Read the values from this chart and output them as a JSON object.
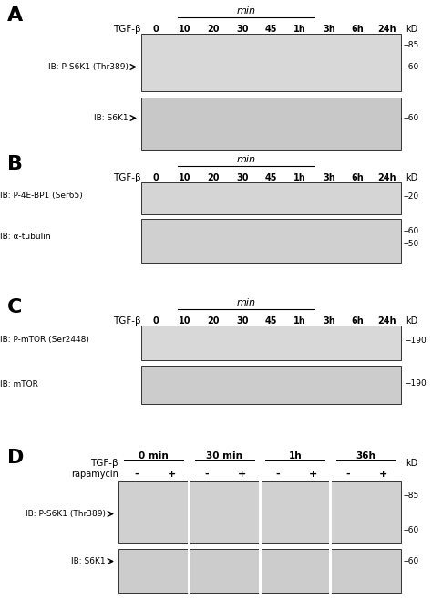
{
  "panel_A": {
    "label": "A",
    "time_labels": [
      "0",
      "10",
      "20",
      "30",
      "45",
      "1h",
      "3h",
      "6h",
      "24h"
    ],
    "min_label": "min",
    "tgf_label": "TGF-β",
    "blot1_label": "IB: P-S6K1 (Thr389)",
    "blot2_label": "IB: S6K1",
    "kd_label": "kD",
    "markers1": [
      85,
      60
    ],
    "markers2": [
      60
    ]
  },
  "panel_B": {
    "label": "B",
    "time_labels": [
      "0",
      "10",
      "20",
      "30",
      "45",
      "1h",
      "3h",
      "6h",
      "24h"
    ],
    "min_label": "min",
    "tgf_label": "TGF-β",
    "blot1_label": "IB: P-4E-BP1 (Ser65)",
    "blot2_label": "IB: α-tubulin",
    "kd_label": "kD",
    "markers1": [
      20
    ],
    "markers2": [
      60,
      50
    ]
  },
  "panel_C": {
    "label": "C",
    "time_labels": [
      "0",
      "10",
      "20",
      "30",
      "45",
      "1h",
      "3h",
      "6h",
      "24h"
    ],
    "min_label": "min",
    "tgf_label": "TGF-β",
    "blot1_label": "IB: P-mTOR (Ser2448)",
    "blot2_label": "IB: mTOR",
    "kd_label": "kD",
    "markers1": [
      190
    ],
    "markers2": [
      190
    ]
  },
  "panel_D": {
    "label": "D",
    "time_groups": [
      "0 min",
      "30 min",
      "1h",
      "36h"
    ],
    "tgf_label": "TGF-β",
    "rapa_label": "rapamycin",
    "pm_labels": [
      "-",
      "+",
      "-",
      "+",
      "-",
      "+",
      "-",
      "+"
    ],
    "blot1_label": "IB: P-S6K1 (Thr389)",
    "blot2_label": "IB: S6K1",
    "kd_label": "kD",
    "markers1": [
      85,
      60
    ],
    "markers2": [
      60
    ]
  },
  "bg_color": "#ffffff",
  "blot_bg": "#e8e8e8",
  "band_dark": "#1a1a1a",
  "band_mid": "#888888",
  "band_light": "#bbbbbb"
}
